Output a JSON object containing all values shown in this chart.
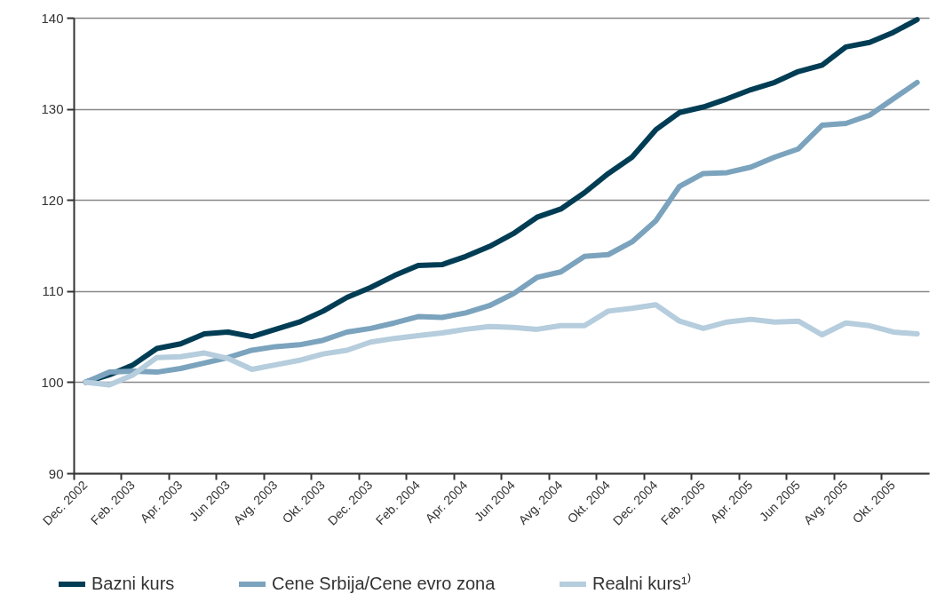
{
  "chart_data": {
    "type": "line",
    "categories": [
      "Dec. 2002",
      null,
      "Feb. 2003",
      null,
      "Apr. 2003",
      null,
      "Jun 2003",
      null,
      "Avg. 2003",
      null,
      "Okt. 2003",
      null,
      "Dec. 2003",
      null,
      "Feb. 2004",
      null,
      "Apr. 2004",
      null,
      "Jun 2004",
      null,
      "Avg. 2004",
      null,
      "Okt. 2004",
      null,
      "Dec. 2004",
      null,
      "Feb. 2005",
      null,
      "Apr. 2005",
      null,
      "Jun 2005",
      null,
      "Avg. 2005",
      null,
      "Okt. 2005",
      null
    ],
    "series": [
      {
        "name": "Bazni kurs",
        "color": "#003d55",
        "values": [
          100,
          100.8,
          101.9,
          103.7,
          104.2,
          105.3,
          105.5,
          105.0,
          105.8,
          106.6,
          107.8,
          109.3,
          110.4,
          111.7,
          112.8,
          112.9,
          113.8,
          114.9,
          116.3,
          118.1,
          119.0,
          120.8,
          122.9,
          124.7,
          127.7,
          129.6,
          130.2,
          131.1,
          132.1,
          132.9,
          134.1,
          134.8,
          136.8,
          137.3,
          138.4,
          139.8
        ]
      },
      {
        "name": "Cene Srbija/Cene evro zona",
        "color": "#7ba3bd",
        "values": [
          100,
          101.1,
          101.2,
          101.1,
          101.5,
          102.1,
          102.7,
          103.5,
          103.9,
          104.1,
          104.6,
          105.5,
          105.9,
          106.5,
          107.2,
          107.1,
          107.6,
          108.4,
          109.7,
          111.5,
          112.1,
          113.8,
          114.0,
          115.4,
          117.7,
          121.5,
          122.9,
          123.0,
          123.6,
          124.7,
          125.6,
          128.2,
          128.4,
          129.3,
          131.1,
          132.9
        ]
      },
      {
        "name": "Realni kurs¹⁾",
        "color": "#b5cddd",
        "values": [
          100,
          99.7,
          100.8,
          102.7,
          102.8,
          103.2,
          102.6,
          101.4,
          101.9,
          102.4,
          103.1,
          103.5,
          104.4,
          104.8,
          105.1,
          105.4,
          105.8,
          106.1,
          106.0,
          105.8,
          106.2,
          106.2,
          107.8,
          108.1,
          108.5,
          106.7,
          105.9,
          106.6,
          106.9,
          106.6,
          106.7,
          105.2,
          106.5,
          106.2,
          105.5,
          105.3
        ]
      }
    ],
    "ylim": [
      90,
      140
    ],
    "yticks": [
      90,
      100,
      110,
      120,
      130,
      140
    ],
    "grid": "y",
    "legend": "bottom"
  }
}
